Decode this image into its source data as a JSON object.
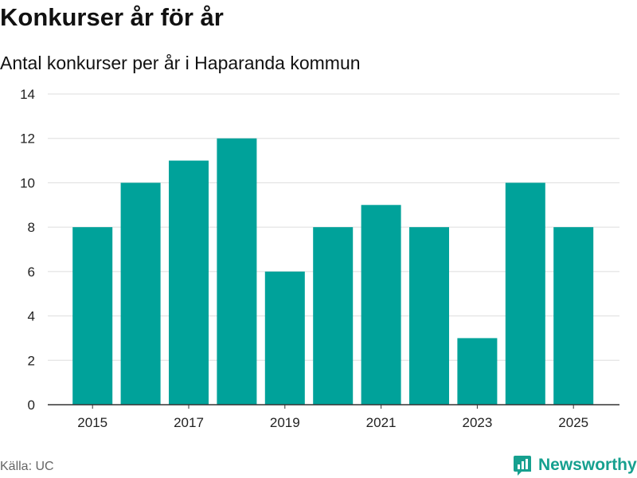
{
  "title": "Konkurser år för år",
  "subtitle": "Antal konkurser per år i Haparanda kommun",
  "source": "Källa: UC",
  "brand": {
    "name": "Newsworthy",
    "icon": "newsworthy-logo-icon",
    "color": "#16a08f"
  },
  "colors": {
    "bar": "#00a29a",
    "grid": "#dddddd",
    "axis": "#333333",
    "tick_text": "#222222"
  },
  "chart_data": {
    "type": "bar",
    "categories": [
      "2015",
      "2016",
      "2017",
      "2018",
      "2019",
      "2020",
      "2021",
      "2022",
      "2023",
      "2024",
      "2025"
    ],
    "values": [
      8,
      10,
      11,
      12,
      6,
      8,
      9,
      8,
      3,
      10,
      8
    ],
    "ylim": [
      0,
      14
    ],
    "yticks": [
      0,
      2,
      4,
      6,
      8,
      10,
      12,
      14
    ],
    "xtick_labels": [
      "2015",
      "2017",
      "2019",
      "2021",
      "2023",
      "2025"
    ],
    "xlabel": "",
    "ylabel": "",
    "grid": true,
    "legend": false
  }
}
